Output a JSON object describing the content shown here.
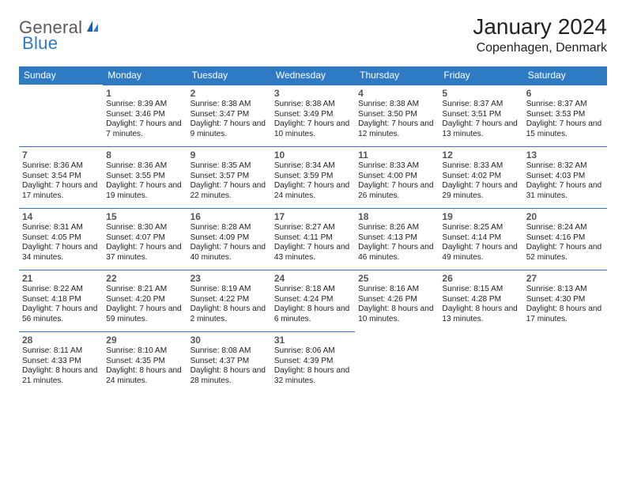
{
  "logo": {
    "text1": "General",
    "text2": "Blue"
  },
  "title": "January 2024",
  "location": "Copenhagen, Denmark",
  "colors": {
    "header_bg": "#2e7bc4",
    "header_text": "#ffffff",
    "divider": "#2e7bc4",
    "daynum": "#555555",
    "body_text": "#222222",
    "logo_gray": "#5a5a5a",
    "logo_blue": "#2e7bc4",
    "background": "#ffffff"
  },
  "day_headers": [
    "Sunday",
    "Monday",
    "Tuesday",
    "Wednesday",
    "Thursday",
    "Friday",
    "Saturday"
  ],
  "weeks": [
    [
      null,
      {
        "n": "1",
        "rise": "Sunrise: 8:39 AM",
        "set": "Sunset: 3:46 PM",
        "dl": "Daylight: 7 hours and 7 minutes."
      },
      {
        "n": "2",
        "rise": "Sunrise: 8:38 AM",
        "set": "Sunset: 3:47 PM",
        "dl": "Daylight: 7 hours and 9 minutes."
      },
      {
        "n": "3",
        "rise": "Sunrise: 8:38 AM",
        "set": "Sunset: 3:49 PM",
        "dl": "Daylight: 7 hours and 10 minutes."
      },
      {
        "n": "4",
        "rise": "Sunrise: 8:38 AM",
        "set": "Sunset: 3:50 PM",
        "dl": "Daylight: 7 hours and 12 minutes."
      },
      {
        "n": "5",
        "rise": "Sunrise: 8:37 AM",
        "set": "Sunset: 3:51 PM",
        "dl": "Daylight: 7 hours and 13 minutes."
      },
      {
        "n": "6",
        "rise": "Sunrise: 8:37 AM",
        "set": "Sunset: 3:53 PM",
        "dl": "Daylight: 7 hours and 15 minutes."
      }
    ],
    [
      {
        "n": "7",
        "rise": "Sunrise: 8:36 AM",
        "set": "Sunset: 3:54 PM",
        "dl": "Daylight: 7 hours and 17 minutes."
      },
      {
        "n": "8",
        "rise": "Sunrise: 8:36 AM",
        "set": "Sunset: 3:55 PM",
        "dl": "Daylight: 7 hours and 19 minutes."
      },
      {
        "n": "9",
        "rise": "Sunrise: 8:35 AM",
        "set": "Sunset: 3:57 PM",
        "dl": "Daylight: 7 hours and 22 minutes."
      },
      {
        "n": "10",
        "rise": "Sunrise: 8:34 AM",
        "set": "Sunset: 3:59 PM",
        "dl": "Daylight: 7 hours and 24 minutes."
      },
      {
        "n": "11",
        "rise": "Sunrise: 8:33 AM",
        "set": "Sunset: 4:00 PM",
        "dl": "Daylight: 7 hours and 26 minutes."
      },
      {
        "n": "12",
        "rise": "Sunrise: 8:33 AM",
        "set": "Sunset: 4:02 PM",
        "dl": "Daylight: 7 hours and 29 minutes."
      },
      {
        "n": "13",
        "rise": "Sunrise: 8:32 AM",
        "set": "Sunset: 4:03 PM",
        "dl": "Daylight: 7 hours and 31 minutes."
      }
    ],
    [
      {
        "n": "14",
        "rise": "Sunrise: 8:31 AM",
        "set": "Sunset: 4:05 PM",
        "dl": "Daylight: 7 hours and 34 minutes."
      },
      {
        "n": "15",
        "rise": "Sunrise: 8:30 AM",
        "set": "Sunset: 4:07 PM",
        "dl": "Daylight: 7 hours and 37 minutes."
      },
      {
        "n": "16",
        "rise": "Sunrise: 8:28 AM",
        "set": "Sunset: 4:09 PM",
        "dl": "Daylight: 7 hours and 40 minutes."
      },
      {
        "n": "17",
        "rise": "Sunrise: 8:27 AM",
        "set": "Sunset: 4:11 PM",
        "dl": "Daylight: 7 hours and 43 minutes."
      },
      {
        "n": "18",
        "rise": "Sunrise: 8:26 AM",
        "set": "Sunset: 4:13 PM",
        "dl": "Daylight: 7 hours and 46 minutes."
      },
      {
        "n": "19",
        "rise": "Sunrise: 8:25 AM",
        "set": "Sunset: 4:14 PM",
        "dl": "Daylight: 7 hours and 49 minutes."
      },
      {
        "n": "20",
        "rise": "Sunrise: 8:24 AM",
        "set": "Sunset: 4:16 PM",
        "dl": "Daylight: 7 hours and 52 minutes."
      }
    ],
    [
      {
        "n": "21",
        "rise": "Sunrise: 8:22 AM",
        "set": "Sunset: 4:18 PM",
        "dl": "Daylight: 7 hours and 56 minutes."
      },
      {
        "n": "22",
        "rise": "Sunrise: 8:21 AM",
        "set": "Sunset: 4:20 PM",
        "dl": "Daylight: 7 hours and 59 minutes."
      },
      {
        "n": "23",
        "rise": "Sunrise: 8:19 AM",
        "set": "Sunset: 4:22 PM",
        "dl": "Daylight: 8 hours and 2 minutes."
      },
      {
        "n": "24",
        "rise": "Sunrise: 8:18 AM",
        "set": "Sunset: 4:24 PM",
        "dl": "Daylight: 8 hours and 6 minutes."
      },
      {
        "n": "25",
        "rise": "Sunrise: 8:16 AM",
        "set": "Sunset: 4:26 PM",
        "dl": "Daylight: 8 hours and 10 minutes."
      },
      {
        "n": "26",
        "rise": "Sunrise: 8:15 AM",
        "set": "Sunset: 4:28 PM",
        "dl": "Daylight: 8 hours and 13 minutes."
      },
      {
        "n": "27",
        "rise": "Sunrise: 8:13 AM",
        "set": "Sunset: 4:30 PM",
        "dl": "Daylight: 8 hours and 17 minutes."
      }
    ],
    [
      {
        "n": "28",
        "rise": "Sunrise: 8:11 AM",
        "set": "Sunset: 4:33 PM",
        "dl": "Daylight: 8 hours and 21 minutes."
      },
      {
        "n": "29",
        "rise": "Sunrise: 8:10 AM",
        "set": "Sunset: 4:35 PM",
        "dl": "Daylight: 8 hours and 24 minutes."
      },
      {
        "n": "30",
        "rise": "Sunrise: 8:08 AM",
        "set": "Sunset: 4:37 PM",
        "dl": "Daylight: 8 hours and 28 minutes."
      },
      {
        "n": "31",
        "rise": "Sunrise: 8:06 AM",
        "set": "Sunset: 4:39 PM",
        "dl": "Daylight: 8 hours and 32 minutes."
      },
      null,
      null,
      null
    ]
  ]
}
